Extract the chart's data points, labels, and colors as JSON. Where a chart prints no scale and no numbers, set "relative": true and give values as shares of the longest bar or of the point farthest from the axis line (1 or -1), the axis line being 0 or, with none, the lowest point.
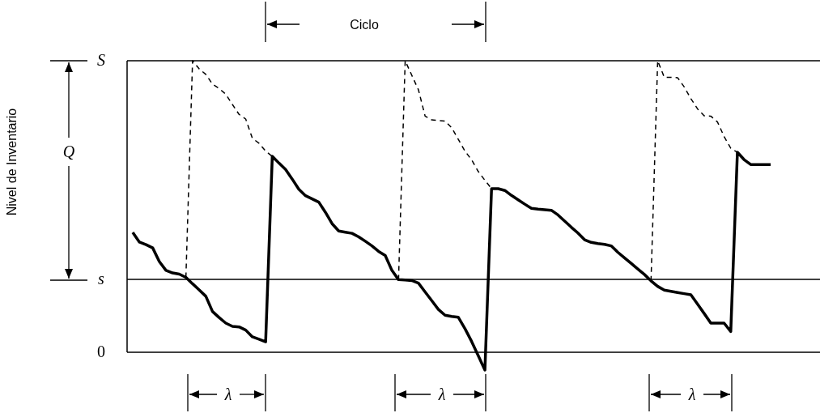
{
  "chart_data": {
    "type": "line",
    "relative": true,
    "tick_labels": false,
    "categories": [
      null,
      null,
      null,
      null,
      null,
      null,
      null,
      null,
      null,
      null,
      null,
      null,
      null,
      null,
      null,
      null,
      null,
      null,
      null,
      null,
      null,
      null,
      null,
      null,
      null,
      null,
      null,
      null,
      null,
      null,
      null,
      null,
      null,
      null,
      null,
      null,
      null,
      null,
      null,
      null,
      null,
      null,
      null,
      null,
      null,
      null,
      null,
      null,
      null,
      null,
      null,
      null,
      null,
      null,
      null,
      null,
      null,
      null,
      null,
      null,
      null,
      null,
      null,
      null,
      null,
      null,
      null,
      null,
      null,
      null,
      null,
      null,
      null,
      null,
      null,
      null,
      null,
      null,
      null,
      null,
      null,
      null,
      null,
      null,
      null,
      null,
      null,
      null,
      null,
      null,
      null,
      null,
      null,
      null,
      null,
      null,
      null
    ],
    "series": [
      {
        "color": "#000000",
        "line_style": "solid",
        "values": [
          0.411,
          0.378,
          0.369,
          0.358,
          0.311,
          0.281,
          0.272,
          0.268,
          0.257,
          0.235,
          0.214,
          0.192,
          0.14,
          0.119,
          0.1,
          0.089,
          0.087,
          0.076,
          0.053,
          0.045,
          0.036,
          0.672,
          0.649,
          0.627,
          0.594,
          0.559,
          0.537,
          0.526,
          0.515,
          0.48,
          0.441,
          0.416,
          0.412,
          0.408,
          0.396,
          0.381,
          0.365,
          0.346,
          0.332,
          0.281,
          0.249,
          0.248,
          0.246,
          0.237,
          0.207,
          0.177,
          0.147,
          0.127,
          0.123,
          0.12,
          0.081,
          0.037,
          -0.012,
          -0.061,
          0.561,
          0.561,
          0.555,
          0.538,
          0.523,
          0.508,
          0.494,
          0.491,
          0.489,
          0.487,
          0.471,
          0.45,
          0.429,
          0.409,
          0.386,
          0.377,
          0.373,
          0.37,
          0.365,
          0.343,
          0.324,
          0.305,
          0.286,
          0.267,
          0.245,
          0.226,
          0.213,
          0.209,
          0.205,
          0.201,
          0.197,
          0.165,
          0.133,
          0.1,
          0.1,
          0.1,
          0.071,
          0.686,
          0.661,
          0.644,
          0.644,
          0.644,
          0.644
        ]
      },
      {
        "color": "#000000",
        "line_style": "dashed",
        "values": [
          null,
          null,
          null,
          null,
          null,
          null,
          null,
          null,
          0.257,
          1,
          0.972,
          0.953,
          0.92,
          0.905,
          0.885,
          0.85,
          0.816,
          0.8,
          0.734,
          0.717,
          0.69,
          0.672,
          null,
          null,
          null,
          null,
          null,
          null,
          null,
          null,
          null,
          null,
          null,
          null,
          null,
          null,
          null,
          null,
          null,
          null,
          null,
          null,
          null,
          null,
          null,
          null,
          null,
          null,
          null,
          null,
          null,
          null,
          null,
          null,
          null,
          null,
          null,
          null,
          null,
          null,
          null,
          null,
          null,
          null,
          null,
          null,
          null,
          null,
          null,
          null,
          null,
          null,
          null,
          null,
          null,
          null,
          null,
          null,
          null,
          null,
          null,
          null,
          null,
          null,
          null,
          null,
          null,
          null,
          null,
          null,
          null,
          null,
          null,
          null,
          null,
          null,
          null
        ]
      },
      {
        "color": "#000000",
        "line_style": "dashed",
        "values": [
          null,
          null,
          null,
          null,
          null,
          null,
          null,
          null,
          null,
          null,
          null,
          null,
          null,
          null,
          null,
          null,
          null,
          null,
          null,
          null,
          null,
          null,
          null,
          null,
          null,
          null,
          null,
          null,
          null,
          null,
          null,
          null,
          null,
          null,
          null,
          null,
          null,
          null,
          null,
          null,
          0.249,
          1,
          0.95,
          0.9,
          0.81,
          0.797,
          0.795,
          0.793,
          0.77,
          0.73,
          0.69,
          0.66,
          0.62,
          0.59,
          0.561,
          null,
          null,
          null,
          null,
          null,
          null,
          null,
          null,
          null,
          null,
          null,
          null,
          null,
          null,
          null,
          null,
          null,
          null,
          null,
          null,
          null,
          null,
          null,
          null,
          null,
          null,
          null,
          null,
          null,
          null,
          null,
          null,
          null,
          null,
          null,
          null,
          null,
          null,
          null,
          null,
          null,
          null
        ]
      },
      {
        "color": "#000000",
        "line_style": "dashed",
        "values": [
          null,
          null,
          null,
          null,
          null,
          null,
          null,
          null,
          null,
          null,
          null,
          null,
          null,
          null,
          null,
          null,
          null,
          null,
          null,
          null,
          null,
          null,
          null,
          null,
          null,
          null,
          null,
          null,
          null,
          null,
          null,
          null,
          null,
          null,
          null,
          null,
          null,
          null,
          null,
          null,
          null,
          null,
          null,
          null,
          null,
          null,
          null,
          null,
          null,
          null,
          null,
          null,
          null,
          null,
          null,
          null,
          null,
          null,
          null,
          null,
          null,
          null,
          null,
          null,
          null,
          null,
          null,
          null,
          null,
          null,
          null,
          null,
          null,
          null,
          null,
          null,
          null,
          null,
          0.245,
          1,
          0.943,
          0.943,
          0.942,
          0.91,
          0.87,
          0.835,
          0.811,
          0.81,
          0.79,
          0.74,
          0.7,
          0.686,
          null,
          null,
          null,
          null,
          null
        ]
      }
    ],
    "ref_lines": [
      {
        "axis": "y",
        "value": 1,
        "label": "S",
        "color": "#000000"
      },
      {
        "axis": "y",
        "value": 0.25,
        "label": "s",
        "color": "#000000"
      },
      {
        "axis": "y",
        "value": 0,
        "label": "0",
        "color": "#000000"
      }
    ],
    "annotations": [
      "Ciclo",
      "Q",
      "λ",
      "λ",
      "λ",
      "Nivel de Inventario"
    ]
  }
}
